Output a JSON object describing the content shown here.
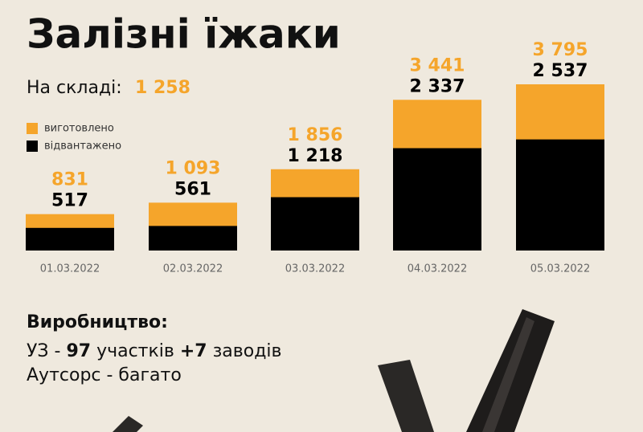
{
  "chart_data": {
    "type": "bar",
    "title": "Залізні їжаки",
    "stock_label": "На складі:",
    "stock": {
      "value": 1258,
      "label": "1 258"
    },
    "categories": [
      "01.03.2022",
      "02.03.2022",
      "03.03.2022",
      "04.03.2022",
      "05.03.2022"
    ],
    "series": [
      {
        "name": "виготовлено",
        "color": "#f5a52b",
        "values": [
          831,
          1093,
          1856,
          3441,
          3795
        ],
        "value_labels": [
          "831",
          "1 093",
          "1 856",
          "3 441",
          "3 795"
        ]
      },
      {
        "name": "відвантажено",
        "color": "#000000",
        "values": [
          517,
          561,
          1218,
          2337,
          2537
        ],
        "value_labels": [
          "517",
          "561",
          "1 218",
          "2 337",
          "2 537"
        ]
      }
    ]
  },
  "production": {
    "title": "Виробництво:",
    "line1": [
      "УЗ -",
      "97",
      "участків",
      "+7",
      "заводів"
    ],
    "line2": "Аутсорс - багато"
  }
}
